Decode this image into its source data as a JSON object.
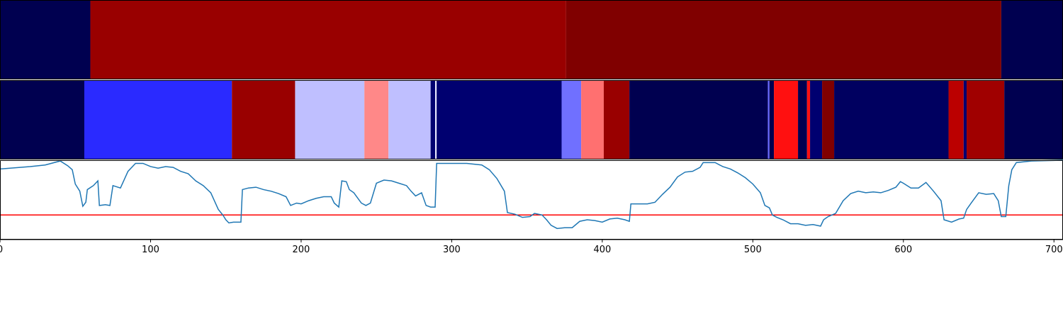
{
  "chart_data": [
    {
      "type": "strip",
      "xlim": [
        0,
        706
      ],
      "segments": [
        {
          "start": 0,
          "end": 60,
          "color": "#000050"
        },
        {
          "start": 60,
          "end": 376,
          "color": "#990000"
        },
        {
          "start": 376,
          "end": 665,
          "color": "#800000"
        },
        {
          "start": 665,
          "end": 706,
          "color": "#000050"
        }
      ]
    },
    {
      "type": "strip",
      "xlim": [
        0,
        706
      ],
      "segments": [
        {
          "start": 0,
          "end": 56,
          "color": "#000050"
        },
        {
          "start": 56,
          "end": 154,
          "color": "#2a2aff"
        },
        {
          "start": 154,
          "end": 196,
          "color": "#990000"
        },
        {
          "start": 196,
          "end": 242,
          "color": "#bfbfff"
        },
        {
          "start": 242,
          "end": 258,
          "color": "#ff8888"
        },
        {
          "start": 258,
          "end": 286,
          "color": "#bfbfff"
        },
        {
          "start": 286,
          "end": 289,
          "color": "#000070"
        },
        {
          "start": 289,
          "end": 290,
          "color": "#e8e8ff"
        },
        {
          "start": 290,
          "end": 373,
          "color": "#000070"
        },
        {
          "start": 373,
          "end": 386,
          "color": "#7070ff"
        },
        {
          "start": 386,
          "end": 401,
          "color": "#ff7070"
        },
        {
          "start": 401,
          "end": 418,
          "color": "#990000"
        },
        {
          "start": 418,
          "end": 510,
          "color": "#000050"
        },
        {
          "start": 510,
          "end": 511,
          "color": "#6666ff"
        },
        {
          "start": 511,
          "end": 514,
          "color": "#000050"
        },
        {
          "start": 514,
          "end": 530,
          "color": "#ff1010"
        },
        {
          "start": 530,
          "end": 536,
          "color": "#000050"
        },
        {
          "start": 536,
          "end": 538,
          "color": "#ff1010"
        },
        {
          "start": 538,
          "end": 546,
          "color": "#000070"
        },
        {
          "start": 546,
          "end": 554,
          "color": "#800000"
        },
        {
          "start": 554,
          "end": 630,
          "color": "#000060"
        },
        {
          "start": 630,
          "end": 640,
          "color": "#bb0000"
        },
        {
          "start": 640,
          "end": 642,
          "color": "#000070"
        },
        {
          "start": 642,
          "end": 667,
          "color": "#a00000"
        },
        {
          "start": 667,
          "end": 706,
          "color": "#000050"
        }
      ]
    },
    {
      "type": "line",
      "xlim": [
        0,
        706
      ],
      "ylim": [
        0,
        1
      ],
      "color": "#1f77b4",
      "xticks": [
        0,
        100,
        200,
        300,
        400,
        500,
        600,
        700
      ],
      "hline": {
        "value": 0.31,
        "color": "#ff0000"
      },
      "x": [
        0,
        20,
        30,
        40,
        45,
        48,
        50,
        53,
        55,
        57,
        58,
        62,
        65,
        66,
        70,
        73,
        75,
        80,
        85,
        90,
        95,
        100,
        105,
        110,
        115,
        120,
        125,
        130,
        135,
        140,
        145,
        148,
        150,
        152,
        155,
        160,
        161,
        165,
        170,
        175,
        180,
        185,
        190,
        193,
        197,
        200,
        205,
        210,
        215,
        220,
        222,
        225,
        227,
        230,
        232,
        235,
        240,
        243,
        246,
        250,
        255,
        260,
        265,
        270,
        273,
        276,
        280,
        283,
        286,
        289,
        290,
        300,
        310,
        320,
        325,
        330,
        335,
        337,
        342,
        347,
        352,
        355,
        360,
        363,
        366,
        370,
        375,
        380,
        385,
        390,
        395,
        400,
        405,
        410,
        415,
        418,
        419,
        425,
        430,
        435,
        440,
        445,
        450,
        455,
        460,
        465,
        467,
        475,
        480,
        485,
        490,
        495,
        500,
        505,
        508,
        511,
        513,
        516,
        520,
        525,
        530,
        535,
        540,
        545,
        547,
        550,
        555,
        560,
        565,
        570,
        575,
        580,
        585,
        590,
        595,
        598,
        600,
        605,
        610,
        615,
        620,
        625,
        627,
        632,
        637,
        640,
        642,
        645,
        650,
        655,
        660,
        663,
        665,
        668,
        670,
        672,
        675,
        685,
        706
      ],
      "values": [
        0.89,
        0.92,
        0.94,
        0.99,
        0.93,
        0.88,
        0.7,
        0.61,
        0.42,
        0.47,
        0.63,
        0.68,
        0.74,
        0.43,
        0.44,
        0.43,
        0.68,
        0.65,
        0.86,
        0.96,
        0.96,
        0.92,
        0.9,
        0.92,
        0.91,
        0.86,
        0.83,
        0.74,
        0.68,
        0.59,
        0.38,
        0.31,
        0.25,
        0.21,
        0.22,
        0.22,
        0.63,
        0.65,
        0.66,
        0.63,
        0.61,
        0.58,
        0.54,
        0.43,
        0.46,
        0.45,
        0.49,
        0.52,
        0.54,
        0.54,
        0.46,
        0.41,
        0.74,
        0.73,
        0.63,
        0.59,
        0.46,
        0.43,
        0.46,
        0.71,
        0.75,
        0.74,
        0.71,
        0.68,
        0.61,
        0.55,
        0.59,
        0.43,
        0.41,
        0.41,
        0.96,
        0.96,
        0.96,
        0.94,
        0.88,
        0.77,
        0.61,
        0.34,
        0.32,
        0.28,
        0.29,
        0.33,
        0.31,
        0.25,
        0.18,
        0.14,
        0.15,
        0.15,
        0.23,
        0.25,
        0.24,
        0.22,
        0.26,
        0.27,
        0.25,
        0.23,
        0.45,
        0.45,
        0.45,
        0.47,
        0.57,
        0.66,
        0.79,
        0.85,
        0.86,
        0.91,
        0.97,
        0.97,
        0.92,
        0.89,
        0.84,
        0.78,
        0.7,
        0.59,
        0.43,
        0.4,
        0.31,
        0.28,
        0.25,
        0.2,
        0.2,
        0.18,
        0.19,
        0.17,
        0.25,
        0.29,
        0.33,
        0.49,
        0.58,
        0.61,
        0.59,
        0.6,
        0.59,
        0.62,
        0.66,
        0.73,
        0.71,
        0.65,
        0.65,
        0.72,
        0.61,
        0.49,
        0.25,
        0.22,
        0.26,
        0.27,
        0.38,
        0.46,
        0.59,
        0.57,
        0.58,
        0.49,
        0.29,
        0.29,
        0.68,
        0.88,
        0.97,
        0.99,
        1.0
      ]
    }
  ]
}
